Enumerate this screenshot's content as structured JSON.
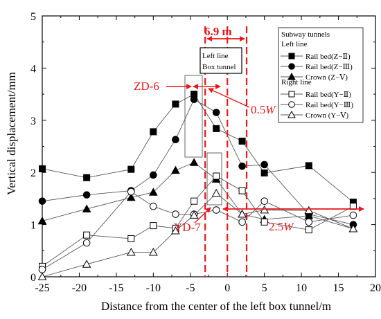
{
  "chart_data": {
    "type": "line",
    "xlabel": "Distance from the center of the left box tunnel/m",
    "ylabel": "Vertical displacement/mm",
    "xlim": [
      -25,
      20
    ],
    "ylim": [
      0,
      5
    ],
    "xticks": [
      -25,
      -20,
      -15,
      -10,
      -5,
      0,
      5,
      10,
      15,
      20
    ],
    "yticks": [
      0,
      1,
      2,
      3,
      4,
      5
    ],
    "xtick_labels": [
      "-25",
      "-20",
      "-15",
      "-10",
      "-5",
      "0",
      "5",
      "10",
      "15",
      "20"
    ],
    "ytick_labels": [
      "0",
      "1",
      "2",
      "3",
      "4",
      "5"
    ],
    "grid": false,
    "legend": {
      "placement": "top-right",
      "header": "Subway tunnels",
      "group_left": "Left line",
      "group_right": "Right line"
    },
    "series": [
      {
        "name": "Rail bed(Z−Ⅱ)",
        "group": "left",
        "marker": "square",
        "filled": true,
        "x": [
          -25,
          -19,
          -13,
          -10,
          -7,
          -4.5,
          -1.5,
          2,
          5,
          11,
          17
        ],
        "y": [
          2.07,
          1.9,
          2.06,
          2.78,
          3.31,
          3.5,
          2.84,
          2.6,
          1.99,
          2.13,
          1.43
        ]
      },
      {
        "name": "Rail bed(Z−Ⅲ)",
        "group": "left",
        "marker": "circle",
        "filled": true,
        "x": [
          -25,
          -19,
          -13,
          -10,
          -7,
          -4.5,
          -1.5,
          2,
          5,
          11,
          17
        ],
        "y": [
          1.45,
          1.57,
          1.65,
          1.95,
          2.63,
          3.4,
          3.15,
          2.12,
          2.15,
          1.2,
          1.0
        ]
      },
      {
        "name": "Crown   (Z−Ⅴ)",
        "group": "left",
        "marker": "triangle",
        "filled": true,
        "x": [
          -25,
          -19,
          -13,
          -10,
          -7,
          -4.5,
          -1.5,
          2,
          5,
          11,
          17
        ],
        "y": [
          1.07,
          1.3,
          1.52,
          1.62,
          2.04,
          2.19,
          1.87,
          1.2,
          1.1,
          1.17,
          0.92
        ]
      },
      {
        "name": "Rail bed(Y−Ⅱ)",
        "group": "right",
        "marker": "square",
        "filled": false,
        "x": [
          -25,
          -19,
          -13,
          -10,
          -7,
          -4.5,
          -1.5,
          2,
          5,
          11,
          17
        ],
        "y": [
          0.2,
          0.8,
          0.73,
          0.98,
          0.93,
          1.45,
          1.93,
          1.65,
          1.05,
          0.9,
          1.35
        ]
      },
      {
        "name": "Rail bed(Y−Ⅲ)",
        "group": "right",
        "marker": "circle",
        "filled": false,
        "x": [
          -25,
          -19,
          -13,
          -10,
          -7,
          -4.5,
          -1.5,
          2,
          5,
          11,
          17
        ],
        "y": [
          0.14,
          0.65,
          1.63,
          1.35,
          1.2,
          1.2,
          1.28,
          1.05,
          1.45,
          1.05,
          1.18
        ]
      },
      {
        "name": "Crown   (Y−Ⅴ)",
        "group": "right",
        "marker": "triangle",
        "filled": false,
        "x": [
          -25,
          -19,
          -13,
          -10,
          -7,
          -4.5,
          -1.5,
          2,
          5,
          11,
          17
        ],
        "y": [
          0.0,
          0.24,
          0.47,
          0.47,
          0.88,
          1.18,
          1.6,
          1.2,
          1.28,
          1.27,
          0.92
        ]
      }
    ],
    "annotations": {
      "box_label_line1": "Left line",
      "box_label_line2": "Box tunnel",
      "width_label": "6.9 m",
      "zd_label": "ZD-6",
      "yd_label": "YD-7",
      "half_w_label": "0.5",
      "quarter_w_label": "2.5",
      "w_symbol": "W",
      "red_dashed_x": [
        -3,
        0,
        2.6
      ],
      "highlight_color": "#e8191b"
    }
  }
}
